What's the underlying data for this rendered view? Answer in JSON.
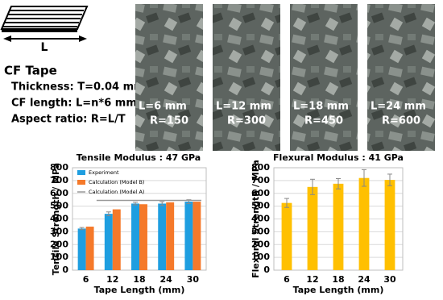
{
  "tape": {
    "length_label": "L",
    "title": "CF Tape",
    "lines": [
      "Thickness: T=0.04 mm",
      "CF length: L=n*6 mm",
      "Aspect ratio: R=L/T"
    ]
  },
  "samples": [
    {
      "length": "L=6 mm",
      "ratio": "R=150"
    },
    {
      "length": "L=12 mm",
      "ratio": "R=300"
    },
    {
      "length": "L=18 mm",
      "ratio": "R=450"
    },
    {
      "length": "L=24 mm",
      "ratio": "R=600"
    }
  ],
  "chart_data": [
    {
      "type": "bar",
      "title": "Tensile Modulus : 47 GPa",
      "x_label": "Tape Length (mm)",
      "y_label": "Tensile Strength / MPa",
      "categories": [
        "6",
        "12",
        "18",
        "24",
        "30"
      ],
      "ylim": [
        0,
        800
      ],
      "yticks": [
        0,
        100,
        200,
        300,
        400,
        500,
        600,
        700,
        800
      ],
      "grid": true,
      "legend": "upper left",
      "series": [
        {
          "name": "Experiment",
          "type": "bar",
          "color": "#1e9ee0",
          "values": [
            325,
            440,
            520,
            520,
            535
          ],
          "errors": [
            8,
            15,
            10,
            15,
            15
          ]
        },
        {
          "name": "Calculation (Model B)",
          "type": "bar",
          "color": "#f5792a",
          "values": [
            340,
            475,
            515,
            530,
            535
          ]
        },
        {
          "name": "Calculation (Model A)",
          "type": "line",
          "color": "#999999",
          "values": [
            null,
            545,
            545,
            545,
            545
          ]
        }
      ]
    },
    {
      "type": "bar",
      "title": "Flexural Modulus : 41 GPa",
      "x_label": "Tape Length (mm)",
      "y_label": "Flexural Strength / MPa",
      "categories": [
        "6",
        "12",
        "18",
        "24",
        "30"
      ],
      "ylim": [
        0,
        800
      ],
      "yticks": [
        0,
        100,
        200,
        300,
        400,
        500,
        600,
        700,
        800
      ],
      "grid": true,
      "series": [
        {
          "type": "bar",
          "color": "#ffc000",
          "values": [
            525,
            650,
            675,
            720,
            705
          ],
          "errors": [
            35,
            60,
            40,
            65,
            45
          ]
        }
      ]
    }
  ]
}
